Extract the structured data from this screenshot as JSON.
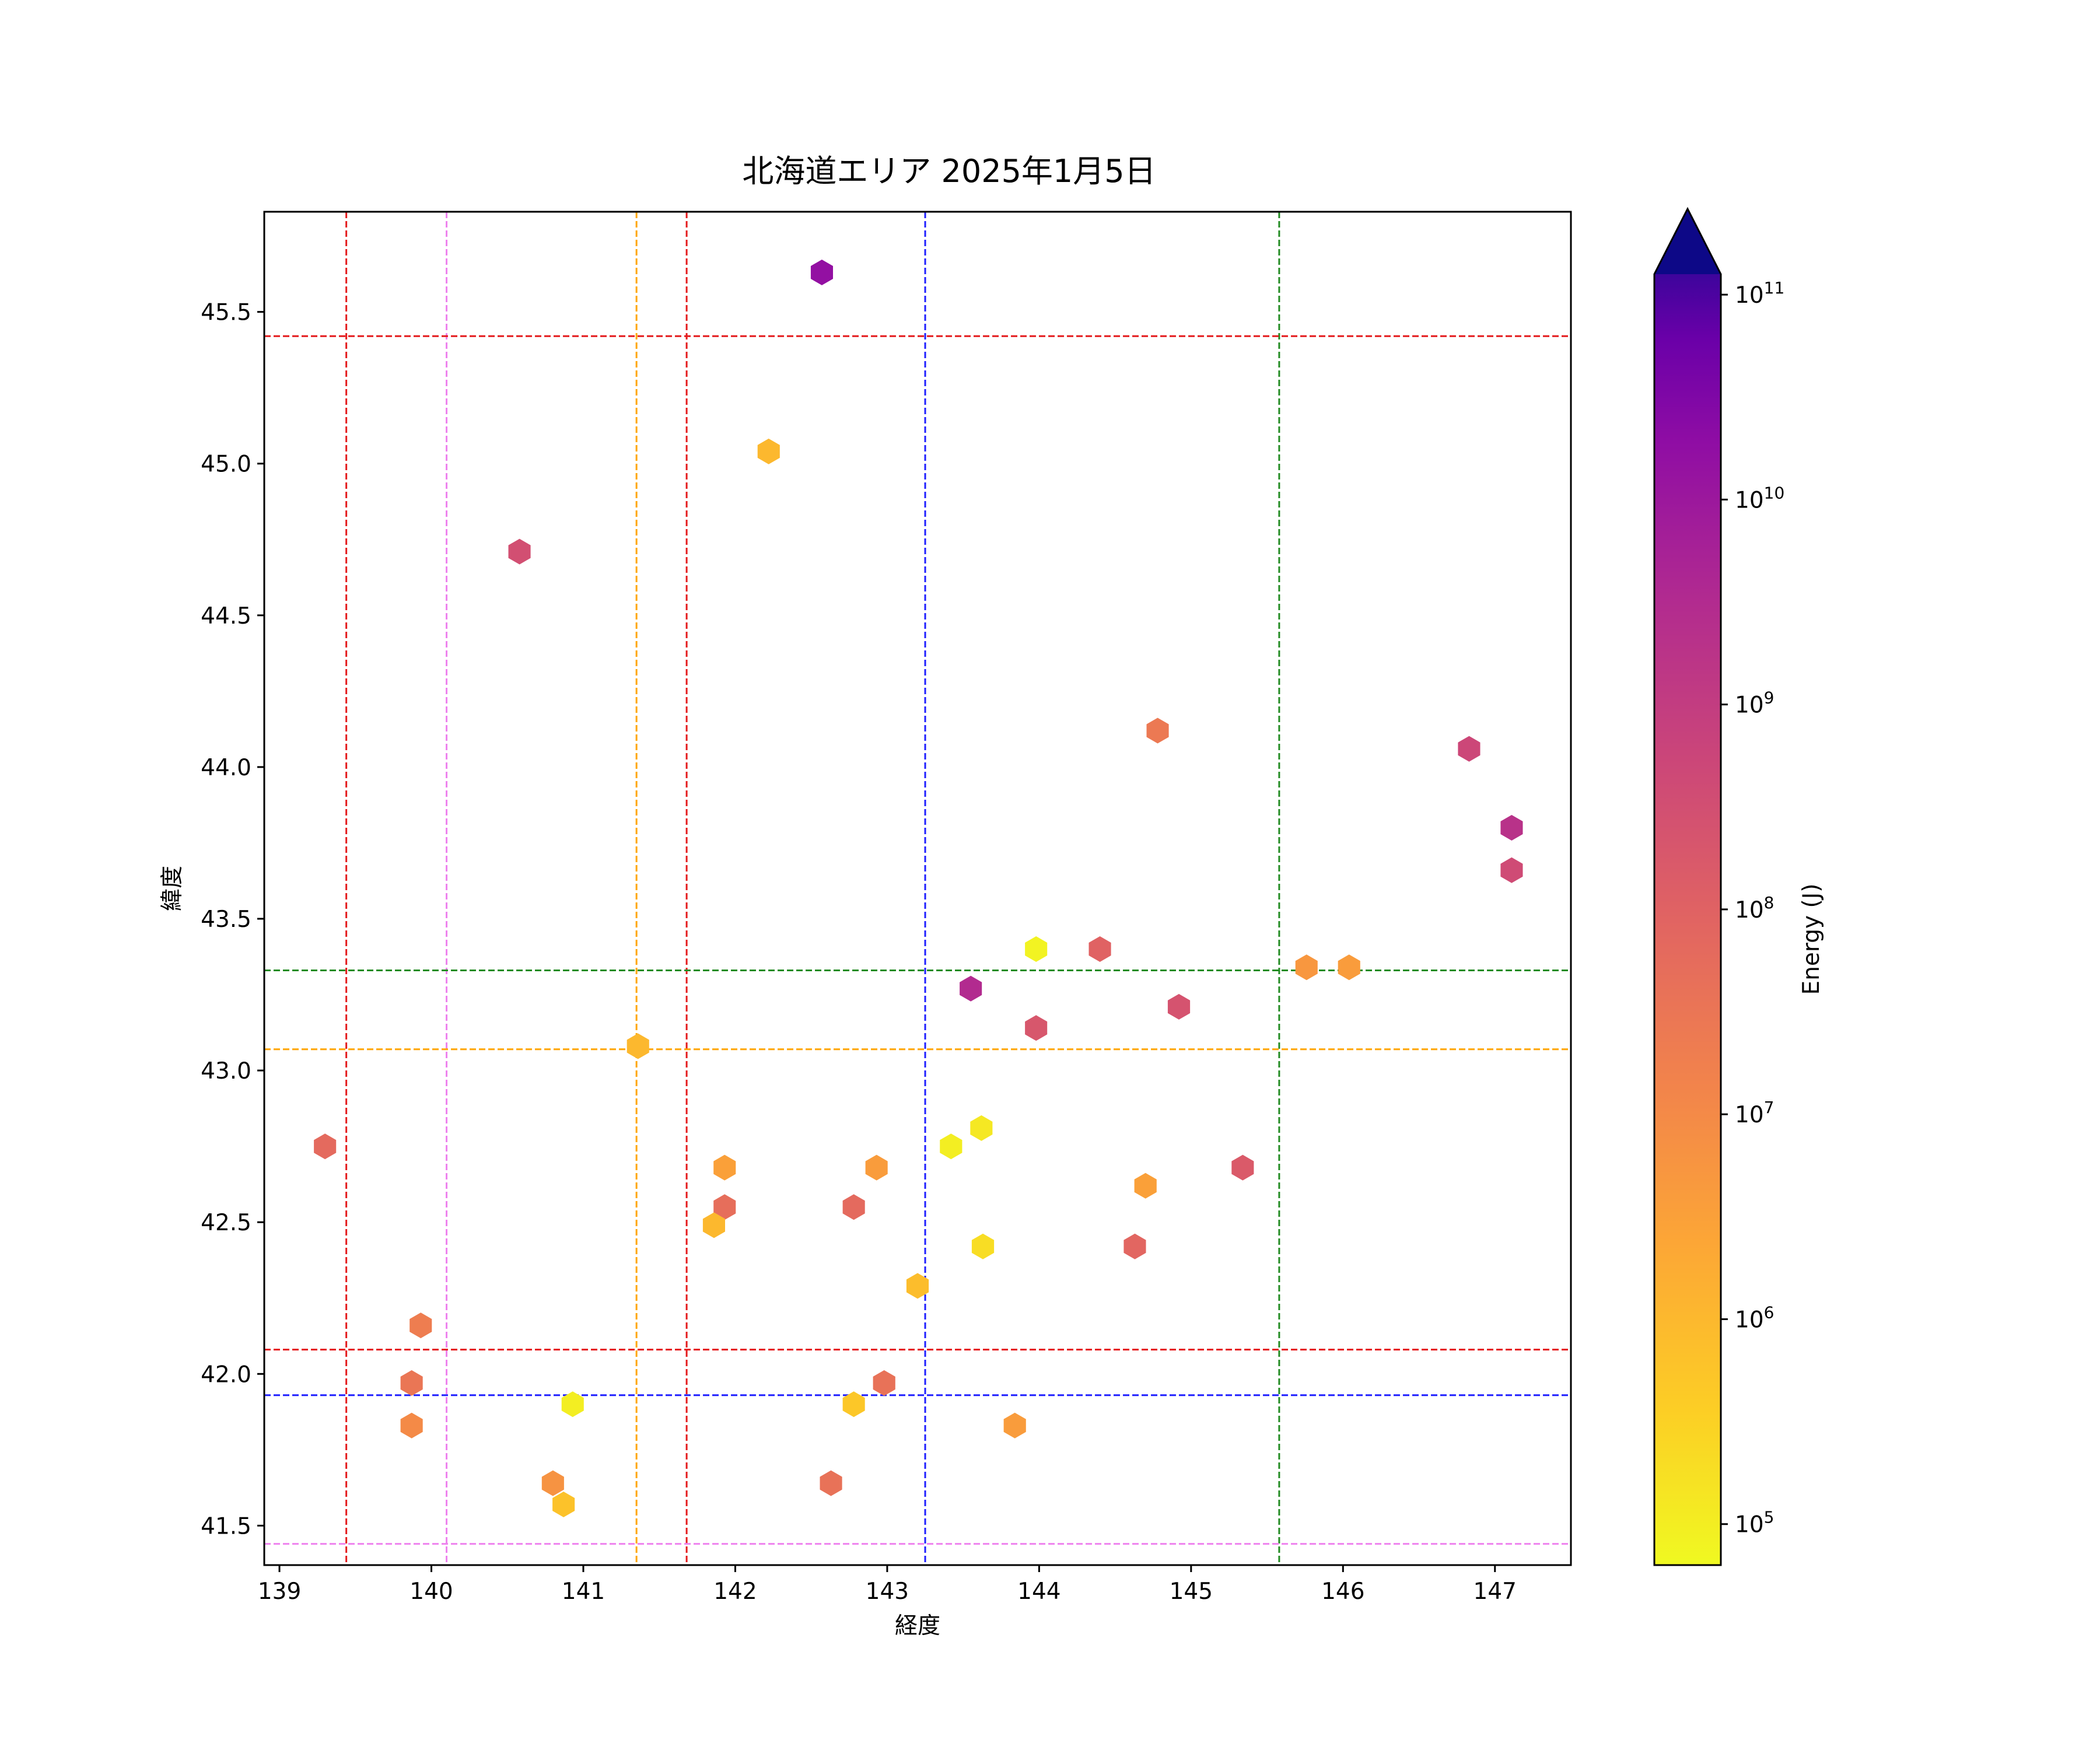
{
  "chart_data": {
    "type": "scatter",
    "title": "北海道エリア 2025年1月5日",
    "xlabel": "経度",
    "ylabel": "緯度",
    "xlim": [
      138.9,
      147.5
    ],
    "ylim": [
      41.37,
      45.83
    ],
    "xticks": [
      139,
      140,
      141,
      142,
      143,
      144,
      145,
      146,
      147
    ],
    "yticks": [
      41.5,
      42.0,
      42.5,
      43.0,
      43.5,
      44.0,
      44.5,
      45.0,
      45.5
    ],
    "xtick_labels": [
      "139",
      "140",
      "141",
      "142",
      "143",
      "144",
      "145",
      "146",
      "147"
    ],
    "ytick_labels": [
      "41.5",
      "42.0",
      "42.5",
      "43.0",
      "43.5",
      "44.0",
      "44.5",
      "45.0",
      "45.5"
    ],
    "grid": false,
    "marker": "hexagon",
    "colormap": "plasma_r",
    "colorbar": {
      "label": "Energy (J)",
      "scale": "log",
      "range_log10": [
        4.8,
        11.1
      ],
      "extend": "max",
      "ticks_log10": [
        5,
        6,
        7,
        8,
        9,
        10,
        11
      ],
      "tick_base": "10",
      "tick_exponents": [
        "5",
        "6",
        "7",
        "8",
        "9",
        "10",
        "11"
      ]
    },
    "reference_lines": {
      "vertical": [
        {
          "x": 139.44,
          "color": "#e41a1c"
        },
        {
          "x": 140.1,
          "color": "#ee82ee"
        },
        {
          "x": 141.35,
          "color": "#ffa500"
        },
        {
          "x": 141.68,
          "color": "#e41a1c"
        },
        {
          "x": 143.25,
          "color": "#1f1fff"
        },
        {
          "x": 145.58,
          "color": "#228b22"
        }
      ],
      "horizontal": [
        {
          "y": 45.42,
          "color": "#e41a1c"
        },
        {
          "y": 43.33,
          "color": "#228b22"
        },
        {
          "y": 43.07,
          "color": "#ffa500"
        },
        {
          "y": 42.08,
          "color": "#e41a1c"
        },
        {
          "y": 41.93,
          "color": "#1f1fff"
        },
        {
          "y": 41.44,
          "color": "#ee82ee"
        }
      ]
    },
    "points": [
      {
        "x": 142.57,
        "y": 45.63,
        "log_energy": 10.2
      },
      {
        "x": 142.22,
        "y": 45.04,
        "log_energy": 6.0
      },
      {
        "x": 140.58,
        "y": 44.71,
        "log_energy": 8.5
      },
      {
        "x": 144.78,
        "y": 44.12,
        "log_energy": 7.4
      },
      {
        "x": 146.83,
        "y": 44.06,
        "log_energy": 8.7
      },
      {
        "x": 147.11,
        "y": 43.8,
        "log_energy": 9.3
      },
      {
        "x": 147.11,
        "y": 43.66,
        "log_energy": 8.6
      },
      {
        "x": 143.98,
        "y": 43.4,
        "log_energy": 4.9
      },
      {
        "x": 144.4,
        "y": 43.4,
        "log_energy": 8.0
      },
      {
        "x": 145.76,
        "y": 43.34,
        "log_energy": 6.7
      },
      {
        "x": 146.04,
        "y": 43.34,
        "log_energy": 6.6
      },
      {
        "x": 143.55,
        "y": 43.27,
        "log_energy": 9.5
      },
      {
        "x": 144.92,
        "y": 43.21,
        "log_energy": 8.4
      },
      {
        "x": 143.98,
        "y": 43.14,
        "log_energy": 8.3
      },
      {
        "x": 141.36,
        "y": 43.08,
        "log_energy": 6.0
      },
      {
        "x": 143.62,
        "y": 42.81,
        "log_energy": 5.1
      },
      {
        "x": 139.3,
        "y": 42.75,
        "log_energy": 7.8
      },
      {
        "x": 143.42,
        "y": 42.75,
        "log_energy": 5.0
      },
      {
        "x": 141.93,
        "y": 42.68,
        "log_energy": 6.5
      },
      {
        "x": 142.93,
        "y": 42.68,
        "log_energy": 6.6
      },
      {
        "x": 145.34,
        "y": 42.68,
        "log_energy": 8.2
      },
      {
        "x": 144.7,
        "y": 42.62,
        "log_energy": 6.5
      },
      {
        "x": 141.93,
        "y": 42.55,
        "log_energy": 7.7
      },
      {
        "x": 142.78,
        "y": 42.55,
        "log_energy": 7.8
      },
      {
        "x": 141.86,
        "y": 42.49,
        "log_energy": 6.0
      },
      {
        "x": 143.63,
        "y": 42.42,
        "log_energy": 5.3
      },
      {
        "x": 144.63,
        "y": 42.42,
        "log_energy": 7.9
      },
      {
        "x": 143.2,
        "y": 42.29,
        "log_energy": 5.9
      },
      {
        "x": 139.93,
        "y": 42.16,
        "log_energy": 7.3
      },
      {
        "x": 139.87,
        "y": 41.97,
        "log_energy": 7.5
      },
      {
        "x": 142.98,
        "y": 41.97,
        "log_energy": 7.6
      },
      {
        "x": 140.93,
        "y": 41.9,
        "log_energy": 5.0
      },
      {
        "x": 142.78,
        "y": 41.9,
        "log_energy": 5.7
      },
      {
        "x": 139.87,
        "y": 41.83,
        "log_energy": 7.0
      },
      {
        "x": 143.84,
        "y": 41.83,
        "log_energy": 6.6
      },
      {
        "x": 140.8,
        "y": 41.64,
        "log_energy": 6.8
      },
      {
        "x": 142.63,
        "y": 41.64,
        "log_energy": 7.6
      },
      {
        "x": 140.87,
        "y": 41.57,
        "log_energy": 5.8
      }
    ]
  }
}
